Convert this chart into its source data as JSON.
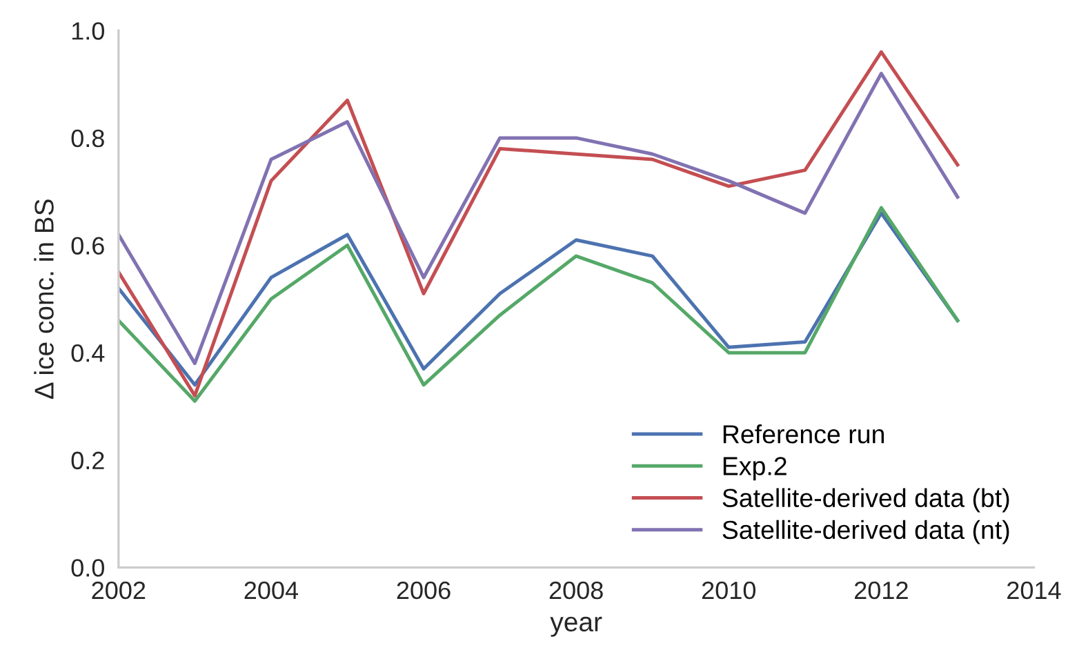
{
  "chart_data": {
    "type": "line",
    "xlabel": "year",
    "ylabel": "Δ ice conc. in BS",
    "x": [
      2002,
      2003,
      2004,
      2005,
      2006,
      2007,
      2008,
      2009,
      2010,
      2011,
      2012,
      2013
    ],
    "series": [
      {
        "name": "Reference run",
        "color": "#4c72b0",
        "values": [
          0.52,
          0.34,
          0.54,
          0.62,
          0.37,
          0.51,
          0.61,
          0.58,
          0.41,
          0.42,
          0.66,
          0.46
        ]
      },
      {
        "name": "Exp.2",
        "color": "#55a868",
        "values": [
          0.46,
          0.31,
          0.5,
          0.6,
          0.34,
          0.47,
          0.58,
          0.53,
          0.4,
          0.4,
          0.67,
          0.46
        ]
      },
      {
        "name": "Satellite-derived data (bt)",
        "color": "#c44e52",
        "values": [
          0.55,
          0.32,
          0.72,
          0.87,
          0.51,
          0.78,
          0.77,
          0.76,
          0.71,
          0.74,
          0.96,
          0.75
        ]
      },
      {
        "name": "Satellite-derived data (nt)",
        "color": "#8172b2",
        "values": [
          0.62,
          0.38,
          0.76,
          0.83,
          0.54,
          0.8,
          0.8,
          0.77,
          0.72,
          0.66,
          0.92,
          0.69
        ]
      }
    ],
    "xlim": [
      2002,
      2014
    ],
    "xticks": [
      2002,
      2004,
      2006,
      2008,
      2010,
      2012,
      2014
    ],
    "ylim": [
      0,
      1.0
    ],
    "yticks": [
      {
        "value": 0,
        "label": "0.0"
      },
      0.2,
      0.4,
      0.6,
      0.8,
      {
        "value": 1.0,
        "label": "1.0"
      }
    ],
    "grid": false,
    "legend": "bottom right",
    "marker": "none",
    "line_style": "solid"
  }
}
